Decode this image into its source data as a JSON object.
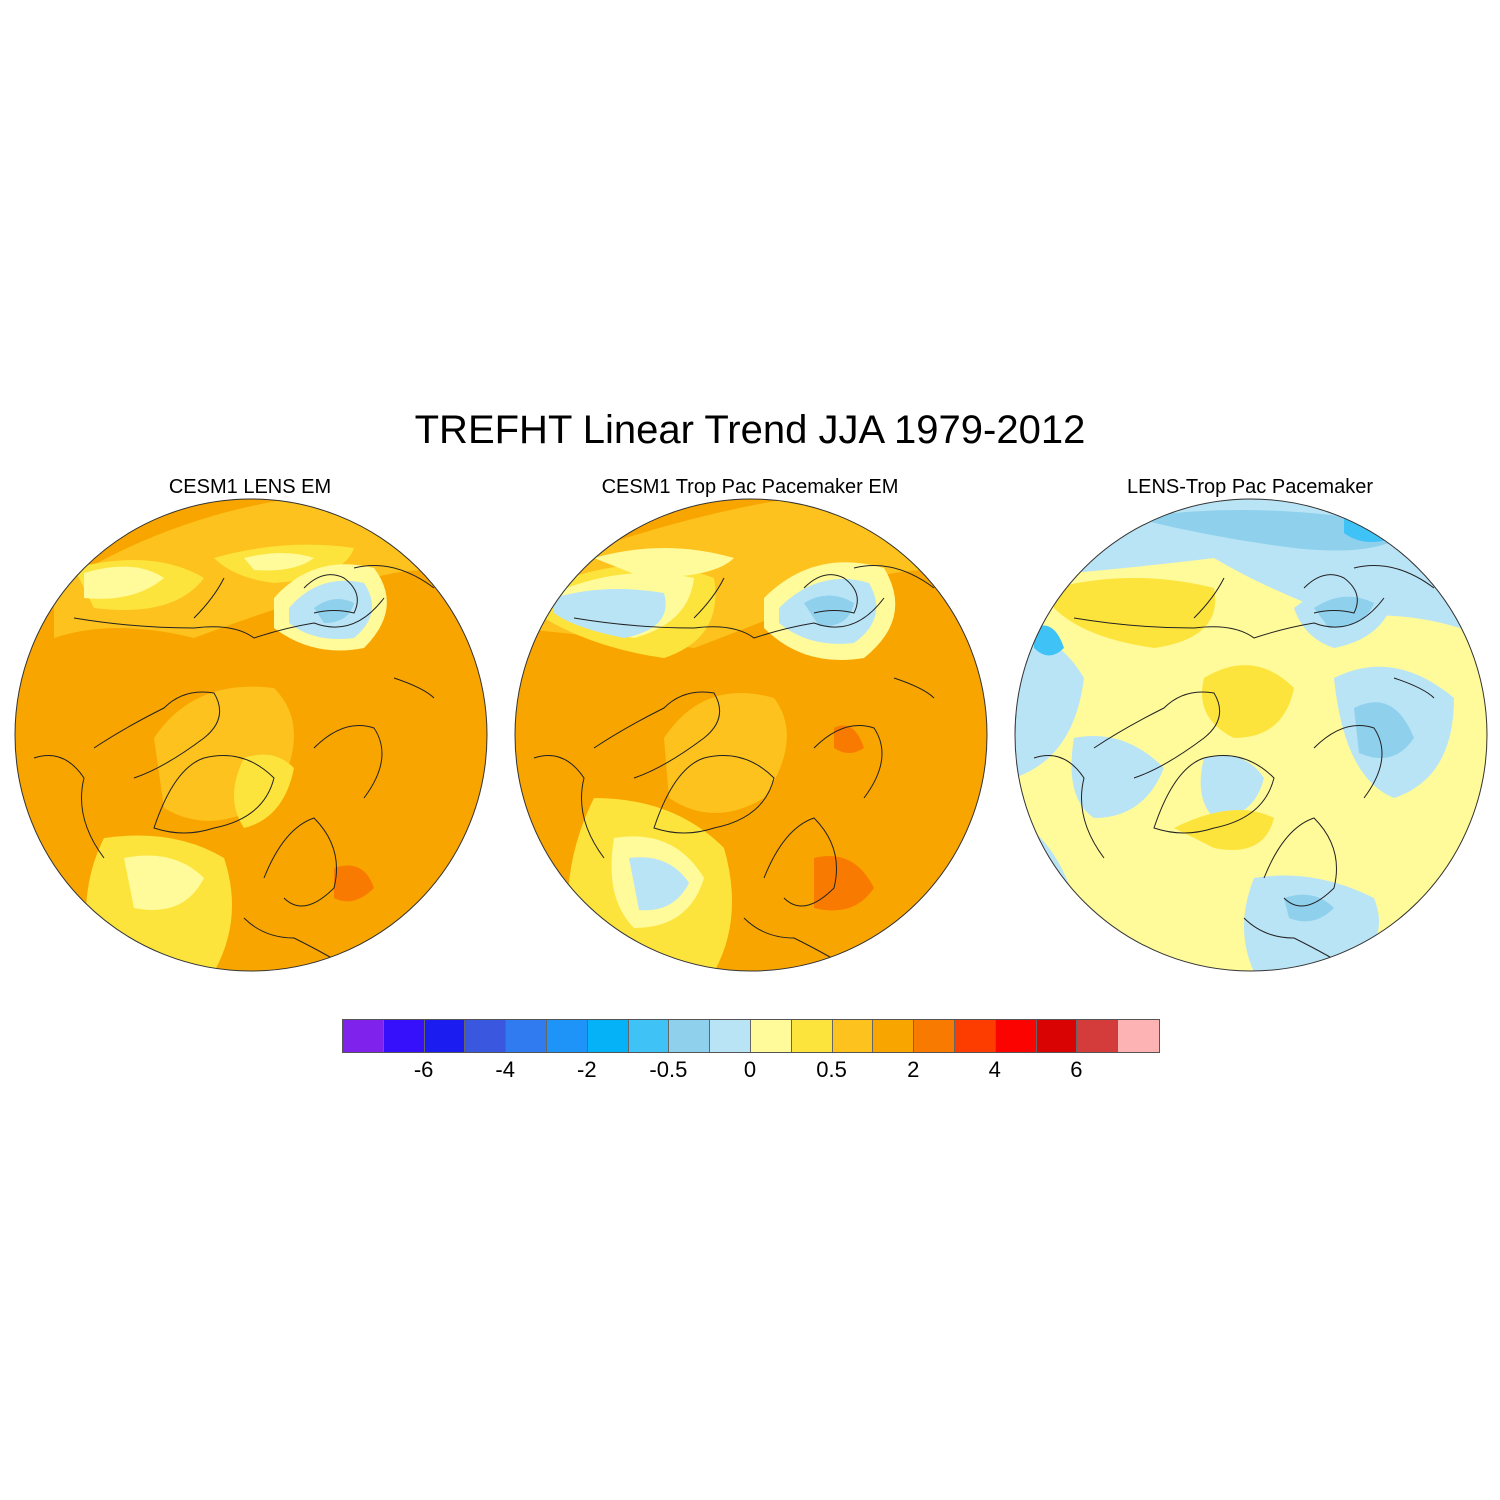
{
  "title": "TREFHT Linear Trend JJA 1979-2012",
  "panels": [
    {
      "title": "CESM1 LENS EM",
      "base": "#f9a500"
    },
    {
      "title": "CESM1 Trop Pac Pacemaker EM",
      "base": "#f9a500"
    },
    {
      "title": "LENS-Trop Pac Pacemaker",
      "base": "#fffa9a"
    }
  ],
  "colorbar": {
    "colors": [
      "#7f22eb",
      "#3610fb",
      "#1b1df0",
      "#3a57df",
      "#2f7bef",
      "#1e94f9",
      "#05b1f7",
      "#3fc3f6",
      "#8fd0ed",
      "#b9e4f6",
      "#fffa9a",
      "#fde43c",
      "#fdc21d",
      "#f9a500",
      "#f97a00",
      "#fd3d00",
      "#fb0300",
      "#d90303",
      "#d43b3b",
      "#fdb3b3"
    ],
    "labels": [
      "-6",
      "-4",
      "-2",
      "-0.5",
      "0",
      "0.5",
      "2",
      "4",
      "6"
    ]
  }
}
